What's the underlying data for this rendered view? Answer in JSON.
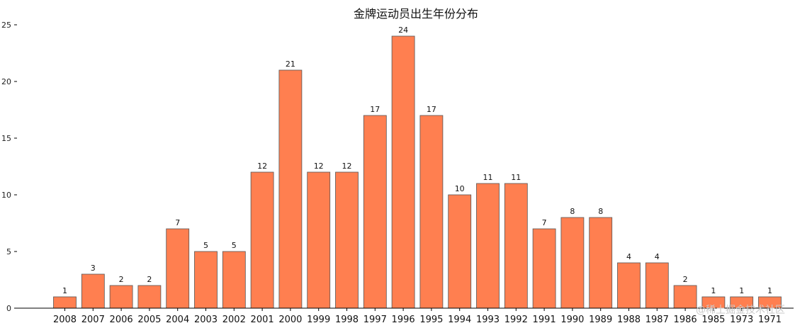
{
  "chart_data": {
    "type": "bar",
    "title": "金牌运动员出生年份分布",
    "xlabel": "",
    "ylabel": "",
    "categories": [
      "2008",
      "2007",
      "2006",
      "2005",
      "2004",
      "2003",
      "2002",
      "2001",
      "2000",
      "1999",
      "1998",
      "1997",
      "1996",
      "1995",
      "1994",
      "1993",
      "1992",
      "1991",
      "1990",
      "1989",
      "1988",
      "1987",
      "1986",
      "1985",
      "1973",
      "1971"
    ],
    "values": [
      1,
      3,
      2,
      2,
      7,
      5,
      5,
      12,
      21,
      12,
      12,
      17,
      24,
      17,
      10,
      11,
      11,
      7,
      8,
      8,
      4,
      4,
      2,
      1,
      1,
      1
    ],
    "ylim": [
      0,
      25
    ],
    "yticks": [
      0,
      5,
      10,
      15,
      20,
      25
    ],
    "grid": false,
    "legend": "none",
    "bar_color": "#FF7F50",
    "edge_color": "#555555"
  },
  "watermark": "@稀土掘金技术社区"
}
